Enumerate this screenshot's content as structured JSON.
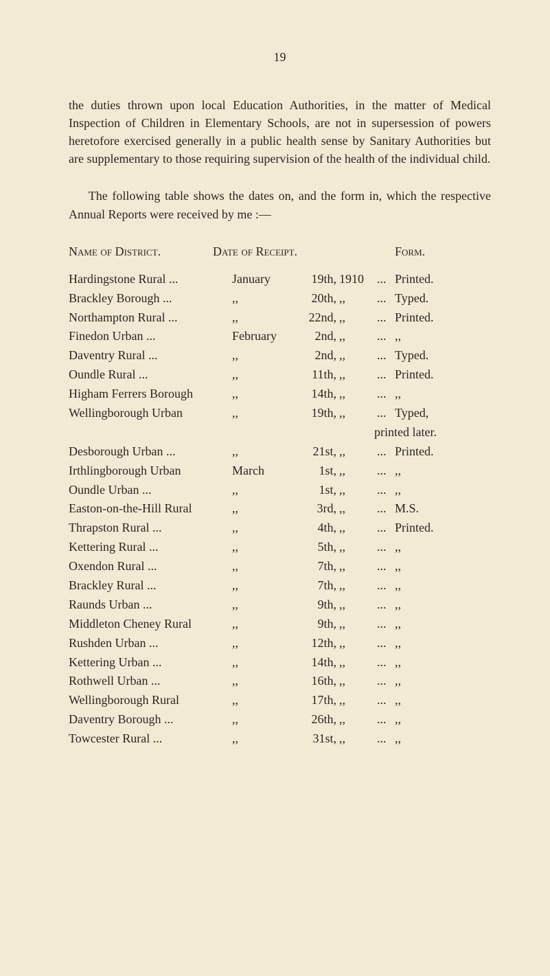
{
  "page_number": "19",
  "paragraphs": {
    "p1": "the duties thrown upon local Education Authorities, in the matter of Medical Inspection of Children in Elementary Schools, are not in supersession of powers heretofore exercised generally in a public health sense by Sanitary Authorities but are supplementary to those requiring supervision of the health of the individual child.",
    "p2": "The following table shows the dates on, and the form in, which the respective Annual Reports were received by me :—"
  },
  "headings": {
    "name": "Name of District.",
    "date": "Date of Receipt.",
    "form": "Form."
  },
  "printed_later_line": "printed later.",
  "rows": [
    {
      "district": "Hardingstone Rural",
      "d_dots": "...",
      "month": "January",
      "day": "19th,",
      "year": "1910",
      "dots": "...",
      "form": "Printed."
    },
    {
      "district": "Brackley Borough",
      "d_dots": "...",
      "month": ",,",
      "day": "20th,",
      "year": ",,",
      "dots": "...",
      "form": "Typed."
    },
    {
      "district": "Northampton Rural",
      "d_dots": "...",
      "month": ",,",
      "day": "22nd,",
      "year": ",,",
      "dots": "...",
      "form": "Printed."
    },
    {
      "district": "Finedon Urban",
      "d_dots": "...",
      "month": "February",
      "day": "2nd,",
      "year": ",,",
      "dots": "...",
      "form": ",,"
    },
    {
      "district": "Daventry Rural",
      "d_dots": "...",
      "month": ",,",
      "day": "2nd,",
      "year": ",,",
      "dots": "...",
      "form": "Typed."
    },
    {
      "district": "Oundle Rural",
      "d_dots": "...",
      "month": ",,",
      "day": "11th,",
      "year": ",,",
      "dots": "...",
      "form": "Printed."
    },
    {
      "district": "Higham Ferrers Borough",
      "d_dots": "",
      "month": ",,",
      "day": "14th,",
      "year": ",,",
      "dots": "...",
      "form": ",,"
    },
    {
      "district": "Wellingborough Urban",
      "d_dots": "",
      "month": ",,",
      "day": "19th,",
      "year": ",,",
      "dots": "...",
      "form": "Typed,",
      "extra": true
    },
    {
      "district": "Desborough Urban",
      "d_dots": "...",
      "month": ",,",
      "day": "21st,",
      "year": ",,",
      "dots": "...",
      "form": "Printed."
    },
    {
      "district": "Irthlingborough Urban",
      "d_dots": "",
      "month": "March",
      "day": "1st,",
      "year": ",,",
      "dots": "...",
      "form": ",,"
    },
    {
      "district": "Oundle Urban",
      "d_dots": "...",
      "month": ",,",
      "day": "1st,",
      "year": ",,",
      "dots": "...",
      "form": ",,"
    },
    {
      "district": "Easton-on-the-Hill Rural",
      "d_dots": "",
      "month": ",,",
      "day": "3rd,",
      "year": ",,",
      "dots": "...",
      "form": "M.S."
    },
    {
      "district": "Thrapston Rural",
      "d_dots": "...",
      "month": ",,",
      "day": "4th,",
      "year": ",,",
      "dots": "...",
      "form": "Printed."
    },
    {
      "district": "Kettering Rural",
      "d_dots": "...",
      "month": ",,",
      "day": "5th,",
      "year": ",,",
      "dots": "...",
      "form": ",,"
    },
    {
      "district": "Oxendon Rural",
      "d_dots": "...",
      "month": ",,",
      "day": "7th,",
      "year": ",,",
      "dots": "...",
      "form": ",,"
    },
    {
      "district": "Brackley Rural",
      "d_dots": "...",
      "month": ",,",
      "day": "7th,",
      "year": ",,",
      "dots": "...",
      "form": ",,"
    },
    {
      "district": "Raunds Urban",
      "d_dots": "...",
      "month": ",,",
      "day": "9th,",
      "year": ",,",
      "dots": "...",
      "form": ",,"
    },
    {
      "district": "Middleton Cheney Rural",
      "d_dots": "",
      "month": ",,",
      "day": "9th,",
      "year": ",,",
      "dots": "...",
      "form": ",,"
    },
    {
      "district": "Rushden Urban",
      "d_dots": "...",
      "month": ",,",
      "day": "12th,",
      "year": ",,",
      "dots": "...",
      "form": ",,"
    },
    {
      "district": "Kettering Urban",
      "d_dots": "...",
      "month": ",,",
      "day": "14th,",
      "year": ",,",
      "dots": "...",
      "form": ",,"
    },
    {
      "district": "Rothwell Urban",
      "d_dots": "...",
      "month": ",,",
      "day": "16th,",
      "year": ",,",
      "dots": "...",
      "form": ",,"
    },
    {
      "district": "Wellingborough Rural",
      "d_dots": "",
      "month": ",,",
      "day": "17th,",
      "year": ",,",
      "dots": "...",
      "form": ",,"
    },
    {
      "district": "Daventry Borough",
      "d_dots": "...",
      "month": ",,",
      "day": "26th,",
      "year": ",,",
      "dots": "...",
      "form": ",,"
    },
    {
      "district": "Towcester Rural",
      "d_dots": "...",
      "month": ",,",
      "day": "31st,",
      "year": ",,",
      "dots": "...",
      "form": ",,"
    }
  ]
}
